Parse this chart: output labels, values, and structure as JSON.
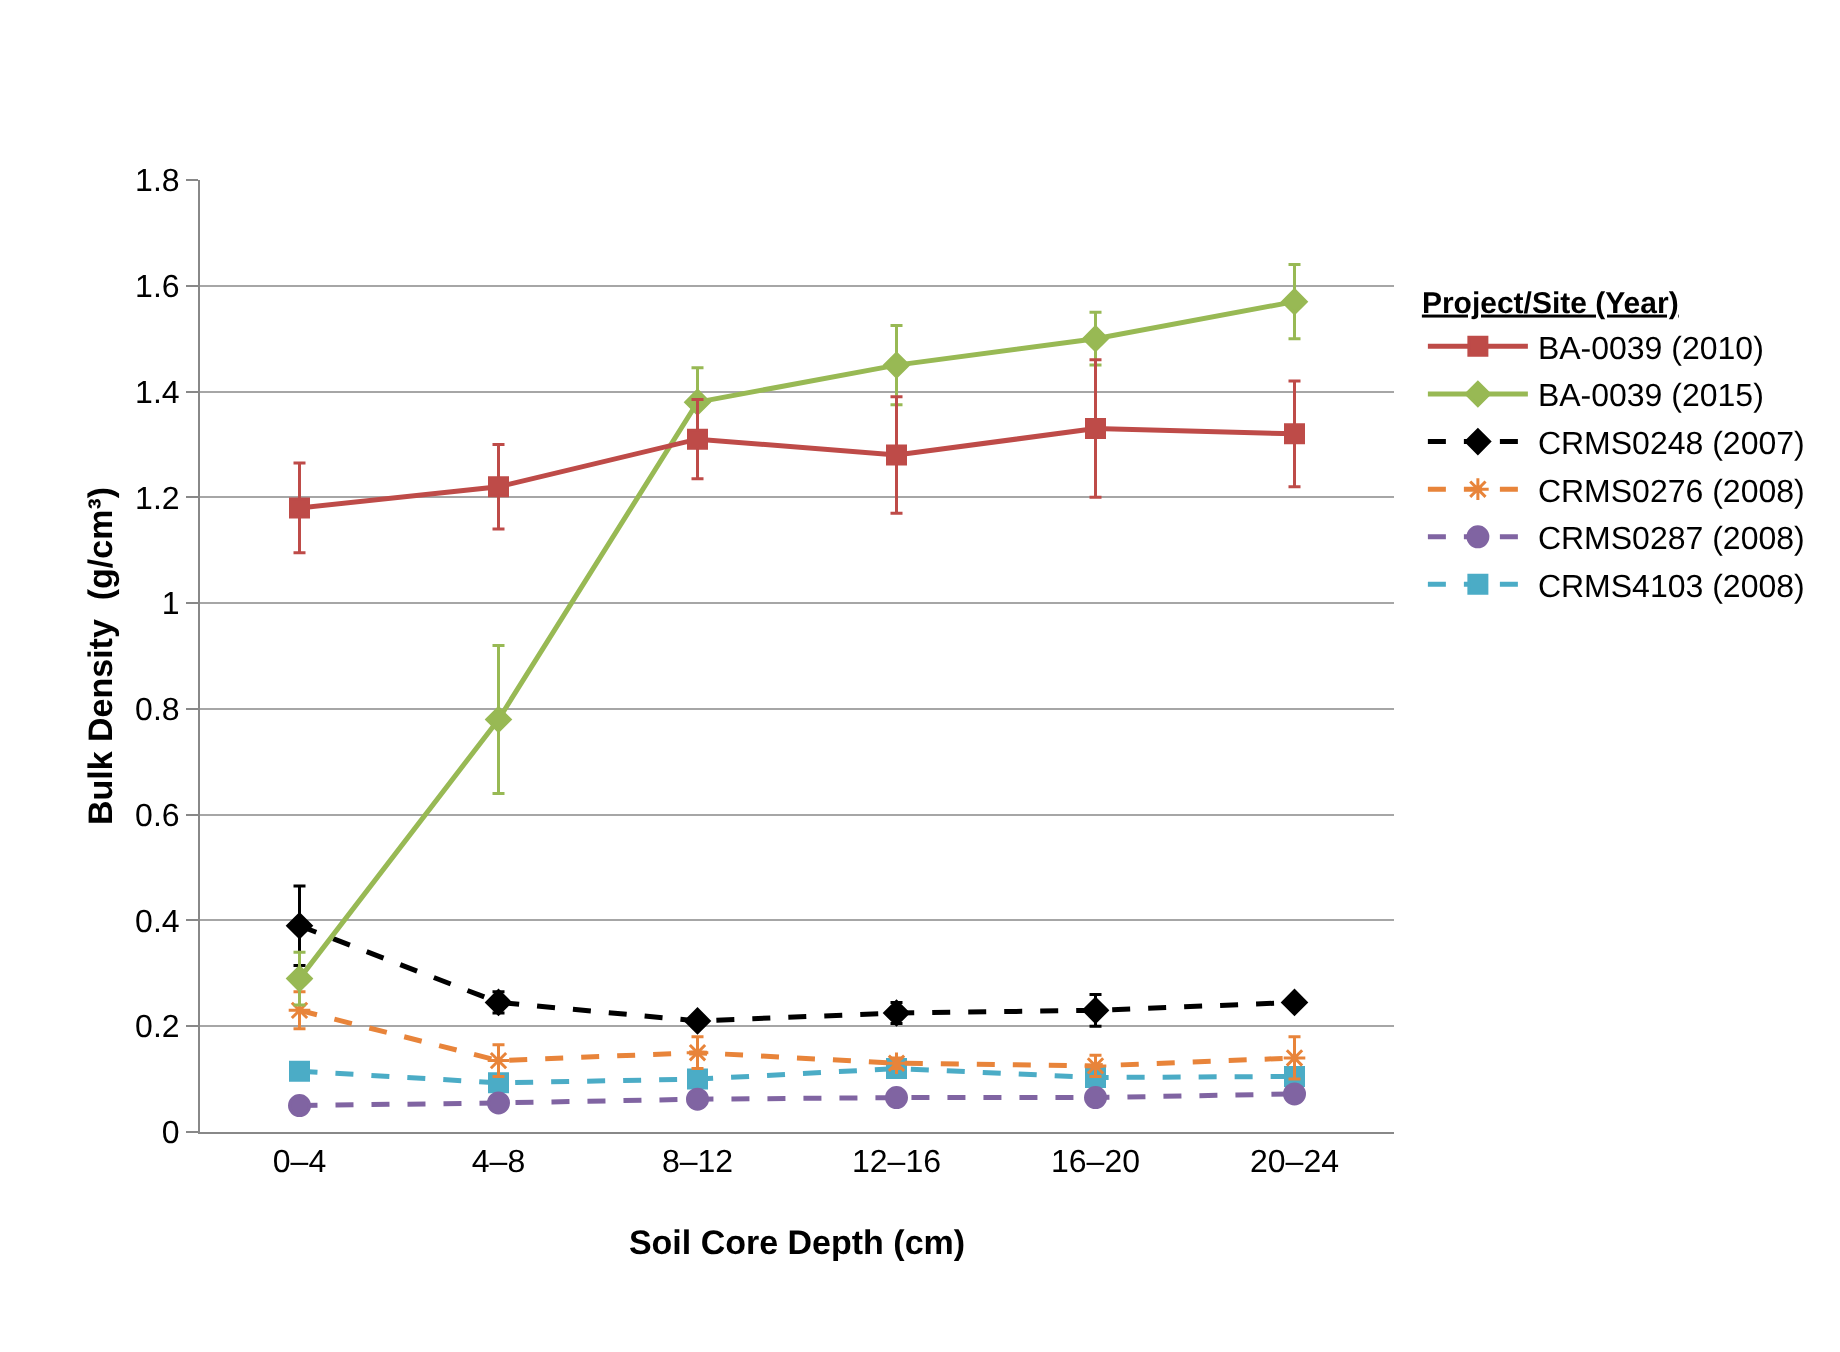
{
  "chart_data": {
    "type": "line",
    "xlabel": "Soil Core Depth (cm)",
    "ylabel": "Bulk Density  (g/cm³)",
    "legend_title": "Project/Site (Year)",
    "categories": [
      "0–4",
      "4–8",
      "8–12",
      "12–16",
      "16–20",
      "20–24"
    ],
    "ylim": [
      0,
      1.8
    ],
    "yticks": [
      0,
      0.2,
      0.4,
      0.6,
      0.8,
      1,
      1.2,
      1.4,
      1.6,
      1.8
    ],
    "grid": "y",
    "legend": "right",
    "series": [
      {
        "name": "BA-0039 (2010)",
        "color": "#be4b48",
        "marker": "square",
        "line_style": "solid",
        "values": [
          1.18,
          1.22,
          1.31,
          1.28,
          1.33,
          1.32
        ],
        "errors": [
          0.085,
          0.08,
          0.075,
          0.11,
          0.13,
          0.1
        ]
      },
      {
        "name": "BA-0039 (2015)",
        "color": "#98b954",
        "marker": "diamond",
        "line_style": "solid",
        "values": [
          0.29,
          0.78,
          1.38,
          1.45,
          1.5,
          1.57
        ],
        "errors": [
          0.05,
          0.14,
          0.065,
          0.075,
          0.05,
          0.07
        ]
      },
      {
        "name": "CRMS0248 (2007)",
        "color": "#000000",
        "marker": "diamond",
        "line_style": "dashed",
        "values": [
          0.39,
          0.245,
          0.21,
          0.225,
          0.23,
          0.245
        ],
        "errors": [
          0.075,
          0.02,
          null,
          0.02,
          0.03,
          null
        ]
      },
      {
        "name": "CRMS0276 (2008)",
        "color": "#e8843a",
        "marker": "cross",
        "line_style": "dashed",
        "values": [
          0.23,
          0.135,
          0.15,
          0.13,
          0.125,
          0.14
        ],
        "errors": [
          0.035,
          0.03,
          0.03,
          0.01,
          0.02,
          0.04
        ]
      },
      {
        "name": "CRMS0287 (2008)",
        "color": "#8064a2",
        "marker": "circle",
        "line_style": "dashed",
        "values": [
          0.05,
          0.055,
          0.062,
          0.065,
          0.065,
          0.072
        ]
      },
      {
        "name": "CRMS4103 (2008)",
        "color": "#4bacc6",
        "marker": "square",
        "line_style": "dashed",
        "values": [
          0.115,
          0.093,
          0.1,
          0.12,
          0.103,
          0.105
        ]
      }
    ]
  }
}
